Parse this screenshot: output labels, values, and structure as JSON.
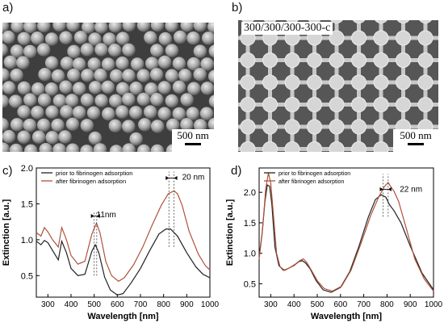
{
  "panels": {
    "a": {
      "label": "a)",
      "scale_text": "500 nm"
    },
    "b": {
      "label": "b)",
      "sample": "300/300/300-300-c",
      "scale_text": "500 nm"
    },
    "c": {
      "label": "c)"
    },
    "d": {
      "label": "d)"
    }
  },
  "chart_data": [
    {
      "type": "line",
      "panel": "c",
      "xlabel": "Wavelength [nm]",
      "ylabel": "Extinction [a.u.]",
      "xlim": [
        250,
        1000
      ],
      "ylim": [
        0.2,
        2.0
      ],
      "xticks": [
        300,
        400,
        500,
        600,
        700,
        800,
        900,
        1000
      ],
      "yticks": [
        0.5,
        1.0,
        1.5,
        2.0
      ],
      "ytick_labels": [
        "0.5",
        "1.0",
        "1.5",
        "2.0"
      ],
      "legend": "top-left",
      "series": [
        {
          "name": "prior to fibrinogen adsorption",
          "color": "#222222",
          "x": [
            250,
            270,
            285,
            300,
            320,
            345,
            360,
            380,
            400,
            430,
            460,
            490,
            505,
            520,
            545,
            570,
            600,
            625,
            660,
            700,
            740,
            780,
            810,
            830,
            860,
            900,
            940,
            970,
            1000
          ],
          "y": [
            0.98,
            0.93,
            0.99,
            0.96,
            0.85,
            0.72,
            0.98,
            0.82,
            0.6,
            0.5,
            0.52,
            0.84,
            0.93,
            0.82,
            0.48,
            0.3,
            0.23,
            0.25,
            0.4,
            0.6,
            0.85,
            1.08,
            1.15,
            1.15,
            1.05,
            0.82,
            0.62,
            0.52,
            0.47
          ]
        },
        {
          "name": "after fibrinogen adsorption",
          "color": "#b0523a",
          "x": [
            250,
            270,
            285,
            300,
            320,
            345,
            360,
            380,
            400,
            430,
            460,
            490,
            510,
            525,
            550,
            575,
            605,
            630,
            670,
            710,
            750,
            790,
            820,
            845,
            860,
            880,
            910,
            950,
            980,
            1000
          ],
          "y": [
            1.1,
            1.05,
            1.17,
            1.11,
            1.0,
            0.9,
            1.17,
            1.0,
            0.78,
            0.66,
            0.7,
            1.08,
            1.23,
            1.1,
            0.7,
            0.5,
            0.42,
            0.47,
            0.65,
            0.9,
            1.2,
            1.48,
            1.64,
            1.68,
            1.64,
            1.48,
            1.12,
            0.8,
            0.64,
            0.58
          ]
        }
      ],
      "annotations": [
        {
          "text": "11nm",
          "x": 510,
          "y": 1.35
        },
        {
          "text": "20 nm",
          "x": 880,
          "y": 1.87
        }
      ]
    },
    {
      "type": "line",
      "panel": "d",
      "xlabel": "Wavelength [nm]",
      "ylabel": "Extinction [a.u.]",
      "xlim": [
        250,
        1000
      ],
      "ylim": [
        0.28,
        2.4
      ],
      "xticks": [
        300,
        400,
        500,
        600,
        700,
        800,
        900,
        1000
      ],
      "yticks": [
        0.5,
        1.0,
        1.5,
        2.0
      ],
      "ytick_labels": [
        "0.5",
        "1.0",
        "1.5",
        "2.0"
      ],
      "legend": "top-left",
      "series": [
        {
          "name": "prior to fibrinogen adsorption",
          "color": "#222222",
          "x": [
            250,
            262,
            275,
            285,
            295,
            305,
            318,
            335,
            355,
            375,
            400,
            420,
            435,
            450,
            470,
            495,
            525,
            560,
            600,
            640,
            680,
            720,
            750,
            775,
            795,
            810,
            830,
            860,
            900,
            950,
            1000
          ],
          "y": [
            0.95,
            1.3,
            1.85,
            2.12,
            2.1,
            1.8,
            1.1,
            0.8,
            0.72,
            0.75,
            0.8,
            0.86,
            0.88,
            0.84,
            0.74,
            0.55,
            0.4,
            0.36,
            0.44,
            0.7,
            1.12,
            1.6,
            1.88,
            1.96,
            1.92,
            1.8,
            1.7,
            1.5,
            1.12,
            0.68,
            0.4
          ]
        },
        {
          "name": "after fibrinogen adsorption",
          "color": "#b0523a",
          "x": [
            250,
            265,
            278,
            290,
            300,
            312,
            325,
            340,
            360,
            380,
            405,
            425,
            440,
            455,
            475,
            500,
            530,
            565,
            605,
            645,
            690,
            730,
            765,
            790,
            805,
            815,
            830,
            850,
            880,
            920,
            960,
            1000
          ],
          "y": [
            0.9,
            1.4,
            2.05,
            2.32,
            2.15,
            1.6,
            1.0,
            0.78,
            0.72,
            0.76,
            0.82,
            0.88,
            0.91,
            0.85,
            0.72,
            0.55,
            0.42,
            0.38,
            0.46,
            0.72,
            1.18,
            1.62,
            1.93,
            2.1,
            2.16,
            2.1,
            2.02,
            1.85,
            1.45,
            0.9,
            0.58,
            0.38
          ]
        }
      ],
      "annotations": [
        {
          "text": "22 nm",
          "x": 855,
          "y": 2.05
        }
      ]
    }
  ]
}
